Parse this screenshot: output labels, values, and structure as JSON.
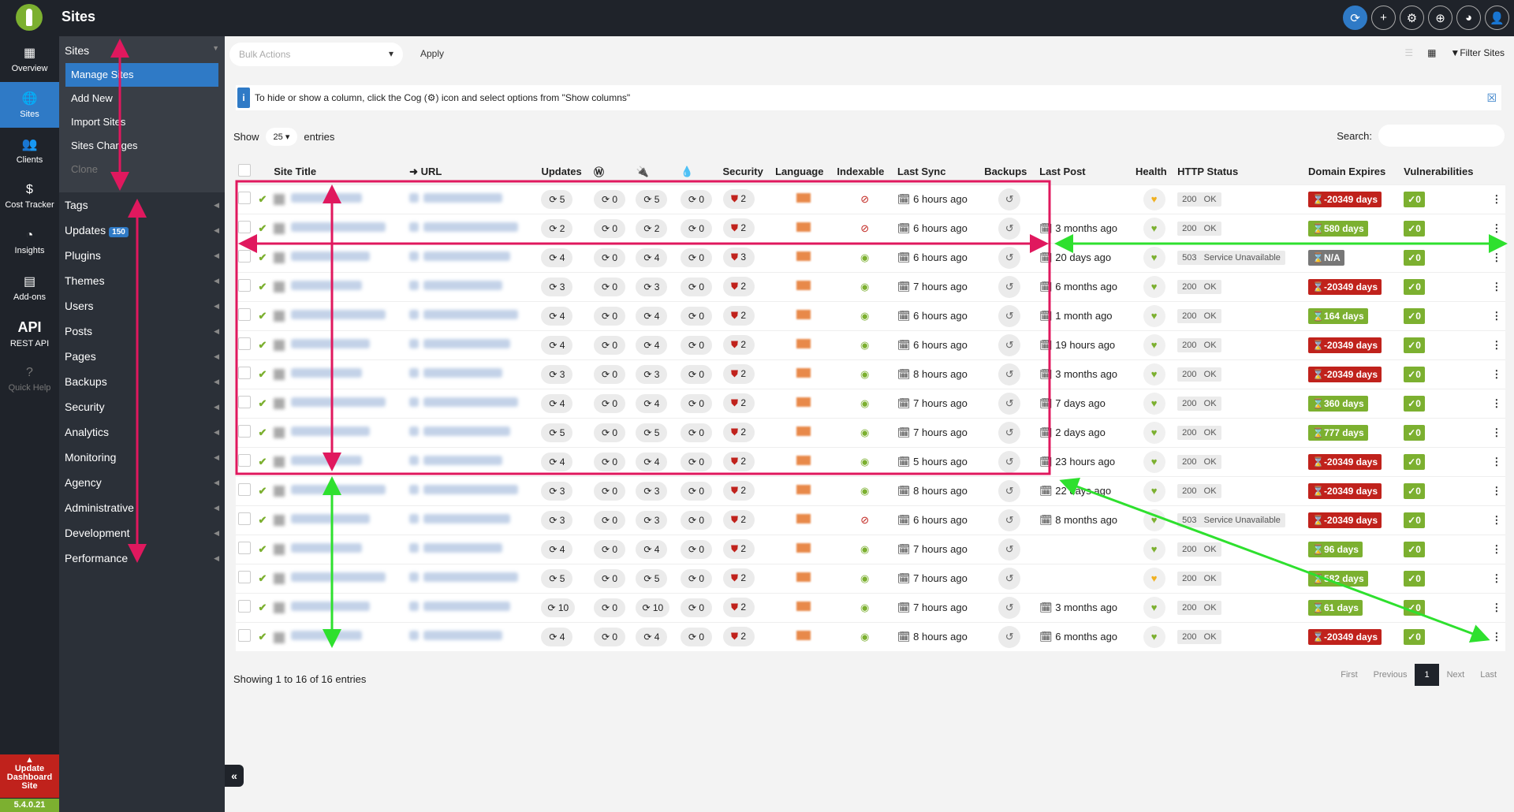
{
  "header": {
    "title": "Sites",
    "icons": [
      "sync-icon",
      "plus-icon",
      "gear-icon",
      "globe-icon",
      "palette-icon",
      "user-icon"
    ]
  },
  "rail": [
    {
      "label": "Overview",
      "icon": "▦"
    },
    {
      "label": "Sites",
      "icon": "🌐"
    },
    {
      "label": "Clients",
      "icon": "👥"
    },
    {
      "label": "Cost Tracker",
      "icon": "$"
    },
    {
      "label": "Insights",
      "icon": "◔"
    },
    {
      "label": "Add-ons",
      "icon": "▤"
    },
    {
      "label": "REST API",
      "icon": "API"
    },
    {
      "label": "Quick Help",
      "icon": "?"
    }
  ],
  "update_dashboard": {
    "label": "Update Dashboard Site",
    "version": "5.4.0.21"
  },
  "submenu": {
    "section": "Sites",
    "links": [
      "Manage Sites",
      "Add New",
      "Import Sites",
      "Sites Changes",
      "Clone"
    ],
    "items": [
      "Tags",
      "Updates",
      "Plugins",
      "Themes",
      "Users",
      "Posts",
      "Pages",
      "Backups",
      "Security",
      "Analytics",
      "Monitoring",
      "Agency",
      "Administrative",
      "Development",
      "Performance"
    ],
    "updates_badge": "150"
  },
  "toolbar": {
    "bulk_placeholder": "Bulk Actions",
    "apply": "Apply",
    "filter": "Filter Sites"
  },
  "info": "To hide or show a column, click the Cog (⚙) icon and select options from \"Show columns\"",
  "show": {
    "label": "Show",
    "value": "25",
    "suffix": "entries"
  },
  "search_label": "Search:",
  "columns": [
    "Site Title",
    "URL",
    "Updates",
    "",
    "",
    "",
    "Security",
    "Language",
    "Indexable",
    "Last Sync",
    "Backups",
    "Last Post",
    "Health",
    "HTTP Status",
    "Domain Expires",
    "Vulnerabilities"
  ],
  "rows": [
    {
      "u": "5",
      "wp": "0",
      "p": "5",
      "t": "0",
      "s": "2",
      "idx": false,
      "sync": "6 hours ago",
      "post": "",
      "health": "yellow",
      "code": "200",
      "status": "OK",
      "dom": "-20349 days",
      "dc": "red",
      "v": "0"
    },
    {
      "u": "2",
      "wp": "0",
      "p": "2",
      "t": "0",
      "s": "2",
      "idx": false,
      "sync": "6 hours ago",
      "post": "3 months ago",
      "health": "green",
      "code": "200",
      "status": "OK",
      "dom": "580 days",
      "dc": "green",
      "v": "0"
    },
    {
      "u": "4",
      "wp": "0",
      "p": "4",
      "t": "0",
      "s": "3",
      "idx": true,
      "sync": "6 hours ago",
      "post": "20 days ago",
      "health": "green",
      "code": "503",
      "status": "Service Unavailable",
      "dom": "N/A",
      "dc": "gray",
      "v": "0"
    },
    {
      "u": "3",
      "wp": "0",
      "p": "3",
      "t": "0",
      "s": "2",
      "idx": true,
      "sync": "7 hours ago",
      "post": "6 months ago",
      "health": "green",
      "code": "200",
      "status": "OK",
      "dom": "-20349 days",
      "dc": "red",
      "v": "0"
    },
    {
      "u": "4",
      "wp": "0",
      "p": "4",
      "t": "0",
      "s": "2",
      "idx": true,
      "sync": "6 hours ago",
      "post": "1 month ago",
      "health": "green",
      "code": "200",
      "status": "OK",
      "dom": "164 days",
      "dc": "green",
      "v": "0"
    },
    {
      "u": "4",
      "wp": "0",
      "p": "4",
      "t": "0",
      "s": "2",
      "idx": true,
      "sync": "6 hours ago",
      "post": "19 hours ago",
      "health": "green",
      "code": "200",
      "status": "OK",
      "dom": "-20349 days",
      "dc": "red",
      "v": "0"
    },
    {
      "u": "3",
      "wp": "0",
      "p": "3",
      "t": "0",
      "s": "2",
      "idx": true,
      "sync": "8 hours ago",
      "post": "3 months ago",
      "health": "green",
      "code": "200",
      "status": "OK",
      "dom": "-20349 days",
      "dc": "red",
      "v": "0"
    },
    {
      "u": "4",
      "wp": "0",
      "p": "4",
      "t": "0",
      "s": "2",
      "idx": true,
      "sync": "7 hours ago",
      "post": "7 days ago",
      "health": "green",
      "code": "200",
      "status": "OK",
      "dom": "360 days",
      "dc": "green",
      "v": "0"
    },
    {
      "u": "5",
      "wp": "0",
      "p": "5",
      "t": "0",
      "s": "2",
      "idx": true,
      "sync": "7 hours ago",
      "post": "2 days ago",
      "health": "green",
      "code": "200",
      "status": "OK",
      "dom": "777 days",
      "dc": "green",
      "v": "0"
    },
    {
      "u": "4",
      "wp": "0",
      "p": "4",
      "t": "0",
      "s": "2",
      "idx": true,
      "sync": "5 hours ago",
      "post": "23 hours ago",
      "health": "green",
      "code": "200",
      "status": "OK",
      "dom": "-20349 days",
      "dc": "red",
      "v": "0"
    },
    {
      "u": "3",
      "wp": "0",
      "p": "3",
      "t": "0",
      "s": "2",
      "idx": true,
      "sync": "8 hours ago",
      "post": "22 days ago",
      "health": "green",
      "code": "200",
      "status": "OK",
      "dom": "-20349 days",
      "dc": "red",
      "v": "0"
    },
    {
      "u": "3",
      "wp": "0",
      "p": "3",
      "t": "0",
      "s": "2",
      "idx": false,
      "sync": "6 hours ago",
      "post": "8 months ago",
      "health": "green",
      "code": "503",
      "status": "Service Unavailable",
      "dom": "-20349 days",
      "dc": "red",
      "v": "0"
    },
    {
      "u": "4",
      "wp": "0",
      "p": "4",
      "t": "0",
      "s": "2",
      "idx": true,
      "sync": "7 hours ago",
      "post": "",
      "health": "green",
      "code": "200",
      "status": "OK",
      "dom": "96 days",
      "dc": "green",
      "v": "0"
    },
    {
      "u": "5",
      "wp": "0",
      "p": "5",
      "t": "0",
      "s": "2",
      "idx": true,
      "sync": "7 hours ago",
      "post": "",
      "health": "yellow",
      "code": "200",
      "status": "OK",
      "dom": "582 days",
      "dc": "green",
      "v": "0"
    },
    {
      "u": "10",
      "wp": "0",
      "p": "10",
      "t": "0",
      "s": "2",
      "idx": true,
      "sync": "7 hours ago",
      "post": "3 months ago",
      "health": "green",
      "code": "200",
      "status": "OK",
      "dom": "61 days",
      "dc": "green",
      "v": "0"
    },
    {
      "u": "4",
      "wp": "0",
      "p": "4",
      "t": "0",
      "s": "2",
      "idx": true,
      "sync": "8 hours ago",
      "post": "6 months ago",
      "health": "green",
      "code": "200",
      "status": "OK",
      "dom": "-20349 days",
      "dc": "red",
      "v": "0"
    }
  ],
  "footer": "Showing 1 to 16 of 16 entries",
  "pager": [
    "First",
    "Previous",
    "1",
    "Next",
    "Last"
  ],
  "colors": {
    "accent": "#2f7ac6",
    "green": "#7cb030",
    "red": "#c0221c",
    "annotation_pink": "#e0185e",
    "annotation_green": "#2ee02e"
  }
}
